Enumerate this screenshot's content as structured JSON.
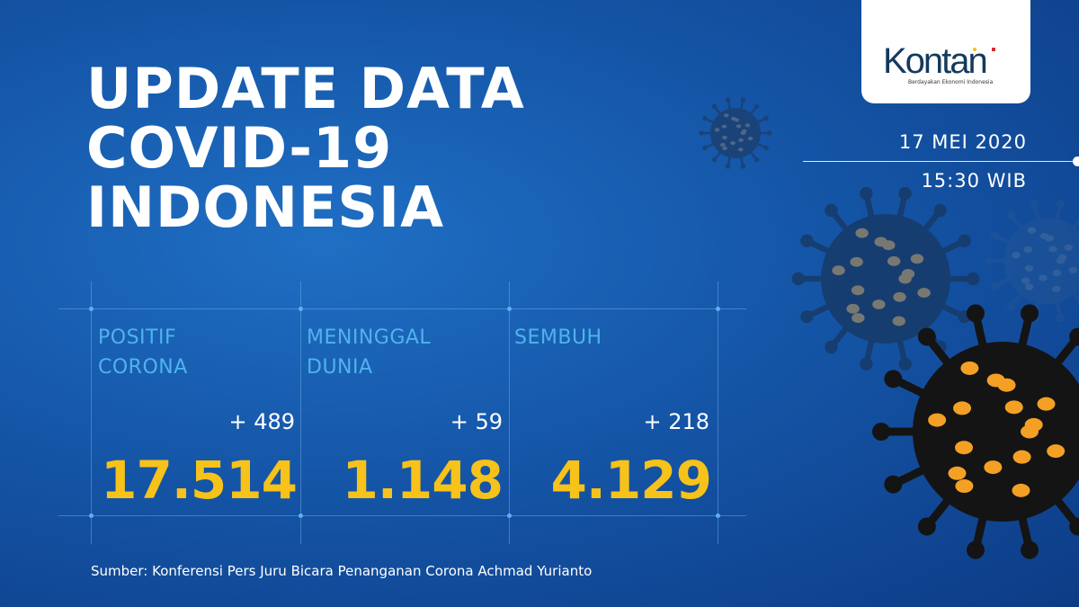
{
  "title": {
    "line1": "UPDATE DATA",
    "line2": "COVID-19",
    "line3": "INDONESIA"
  },
  "logo": {
    "brand": "Kontan",
    "tagline": "Berdayakan Ekonomi Indonesia"
  },
  "date": "17 MEI 2020",
  "time": "15:30 WIB",
  "stats": [
    {
      "label1": "POSITIF",
      "label2": "CORONA",
      "delta": "+ 489",
      "value": "17.514"
    },
    {
      "label1": "MENINGGAL",
      "label2": "DUNIA",
      "delta": "+ 59",
      "value": "1.148"
    },
    {
      "label1": "SEMBUH",
      "label2": "",
      "delta": "+ 218",
      "value": "4.129"
    }
  ],
  "source": "Sumber: Konferensi Pers Juru Bicara Penanganan Corona Achmad Yurianto",
  "colors": {
    "background": "#1556a8",
    "value": "#f7c21a",
    "label": "#4fb3ec",
    "virus_spot": "#f4a024"
  }
}
